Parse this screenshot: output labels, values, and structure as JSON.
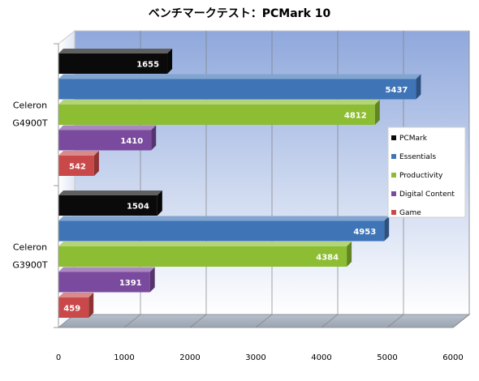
{
  "chart_data": {
    "type": "bar",
    "orientation": "horizontal",
    "title": "ベンチマークテスト：PCMark 10",
    "categories": [
      "Celeron G4900T",
      "Celeron G3900T"
    ],
    "category_lines": [
      [
        "Celeron",
        "G4900T"
      ],
      [
        "Celeron",
        "G3900T"
      ]
    ],
    "series": [
      {
        "name": "PCMark",
        "color": "#0a0a0a",
        "values": [
          1655,
          1504
        ]
      },
      {
        "name": "Essentials",
        "color": "#3f74b7",
        "values": [
          5437,
          4953
        ]
      },
      {
        "name": "Productivity",
        "color": "#8cbd32",
        "values": [
          4812,
          4384
        ]
      },
      {
        "name": "Digital Content",
        "color": "#7a4a9e",
        "values": [
          1410,
          1391
        ]
      },
      {
        "name": "Game",
        "color": "#c9494a",
        "values": [
          542,
          459
        ]
      }
    ],
    "xlim": [
      0,
      6000
    ],
    "xticks": [
      0,
      1000,
      2000,
      3000,
      4000,
      5000,
      6000
    ],
    "data_labels": true,
    "grid": true,
    "legend_position": "right"
  }
}
